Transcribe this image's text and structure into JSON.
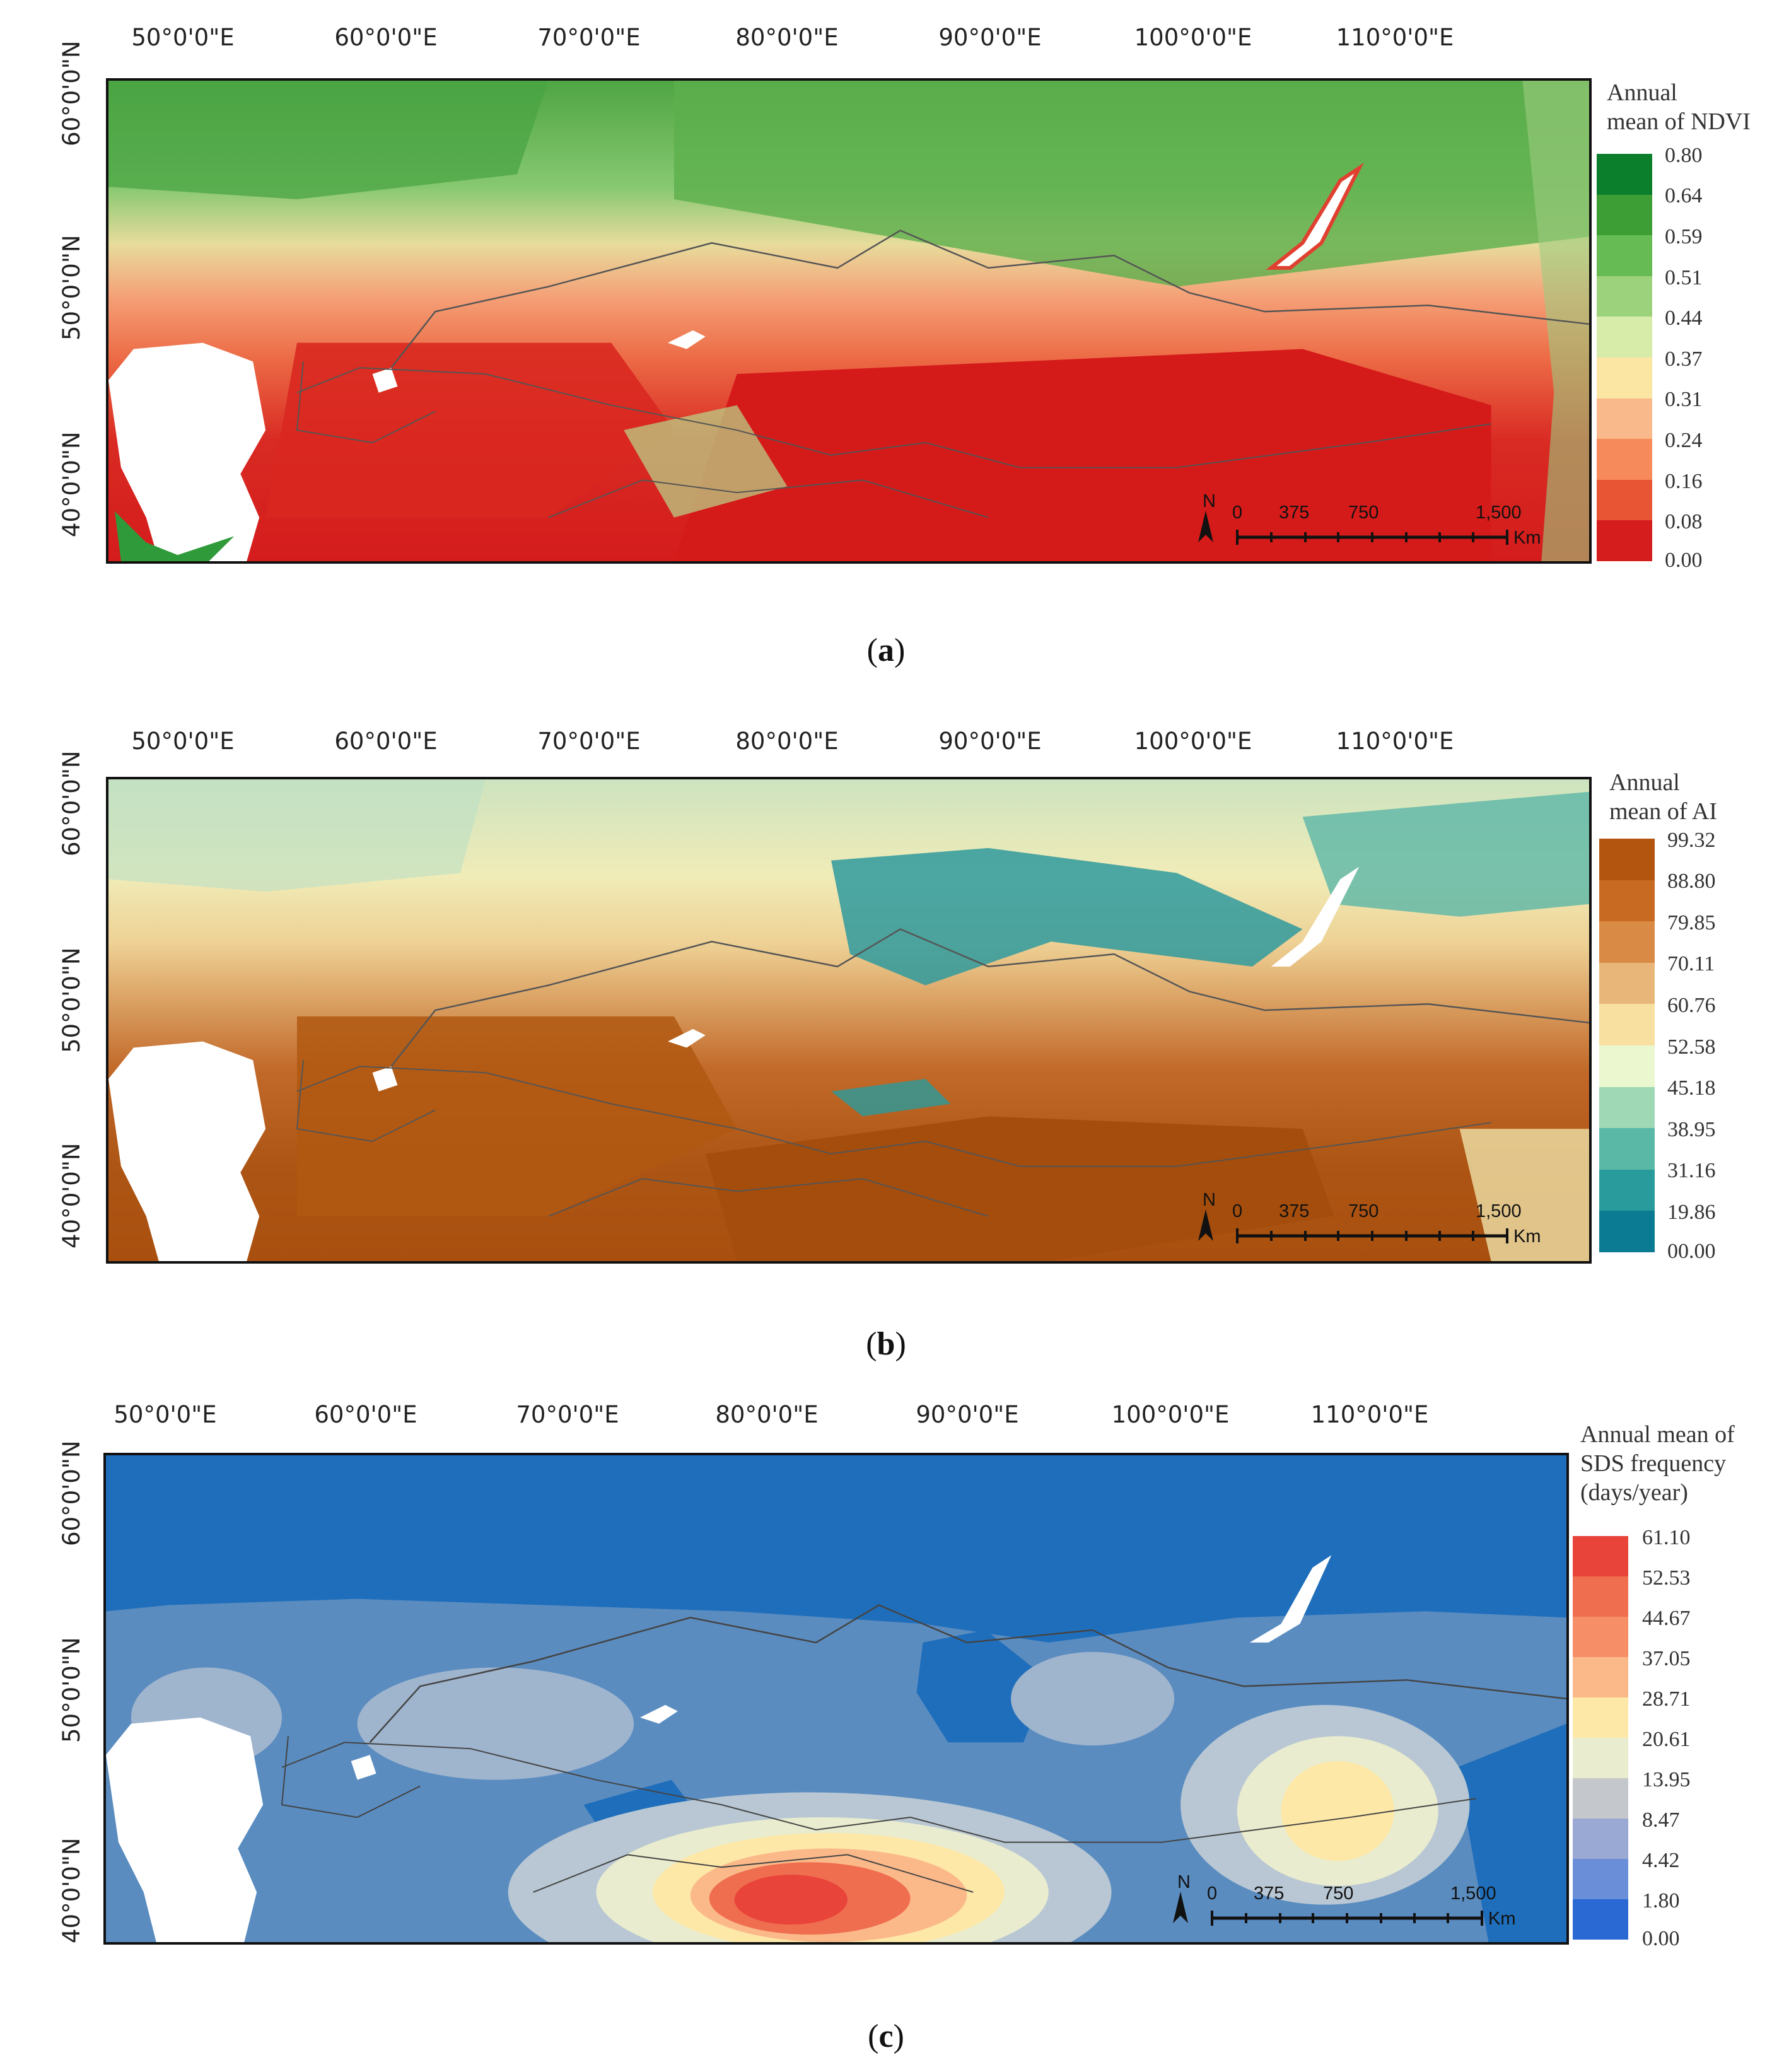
{
  "panels": [
    {
      "id": "a",
      "caption_letter": "a",
      "legend_title": [
        "Annual",
        "mean of NDVI"
      ],
      "legend_ticks": [
        "0.80",
        "0.64",
        "0.59",
        "0.51",
        "0.44",
        "0.37",
        "0.31",
        "0.24",
        "0.16",
        "0.08",
        "0.00"
      ],
      "legend_colors": [
        "#0b7f2c",
        "#3e9e36",
        "#66bb55",
        "#9dd27d",
        "#d8ecaa",
        "#fce6a3",
        "#f9b98a",
        "#f78a5a",
        "#e85535",
        "#d51d1d"
      ],
      "map_colors": {
        "north": "#7cc468",
        "mid": "#e8d79a",
        "south": "#f08a60",
        "desert": "#d62020",
        "water": "#ffffff"
      }
    },
    {
      "id": "b",
      "caption_letter": "b",
      "legend_title": [
        "Annual",
        "mean of AI"
      ],
      "legend_ticks": [
        "99.32",
        "88.80",
        "79.85",
        "70.11",
        "60.76",
        "52.58",
        "45.18",
        "38.95",
        "31.16",
        "19.86",
        "00.00"
      ],
      "legend_colors": [
        "#b3540f",
        "#c86a22",
        "#d98a45",
        "#e9b679",
        "#f7e0a0",
        "#eaf7cf",
        "#9fd8b5",
        "#5ab9a6",
        "#2a9b9c",
        "#0a7b92"
      ],
      "map_colors": {
        "north": "#e6e5b4",
        "mid": "#e3b979",
        "south": "#c36d2c",
        "desert": "#a9500f",
        "water": "#ffffff"
      }
    },
    {
      "id": "c",
      "caption_letter": "c",
      "legend_title": [
        "Annual mean of",
        "SDS frequency",
        "(days/year)"
      ],
      "legend_ticks": [
        "61.10",
        "52.53",
        "44.67",
        "37.05",
        "28.71",
        "20.61",
        "13.95",
        "8.47",
        "4.42",
        "1.80",
        "0.00"
      ],
      "legend_colors": [
        "#e9443a",
        "#f06e50",
        "#f68f68",
        "#fbb98a",
        "#fde8a8",
        "#e9ecce",
        "#c4c8cc",
        "#99a9d4",
        "#6b8ed8",
        "#2a68d3"
      ],
      "map_colors": {
        "north": "#1f6ebb",
        "mid": "#5a8cc0",
        "south": "#b8c7d3",
        "hot": "#e9443a",
        "water": "#ffffff"
      }
    }
  ],
  "lon_labels": [
    "50°0'0\"E",
    "60°0'0\"E",
    "70°0'0\"E",
    "80°0'0\"E",
    "90°0'0\"E",
    "100°0'0\"E",
    "110°0'0\"E"
  ],
  "lat_labels": [
    "60°0'0\"N",
    "50°0'0\"N",
    "40°0'0\"N"
  ],
  "scale_bar": {
    "north_label": "N",
    "zero": "0",
    "t1": "375",
    "t2": "750",
    "t3": "1,500",
    "unit": "Km"
  }
}
